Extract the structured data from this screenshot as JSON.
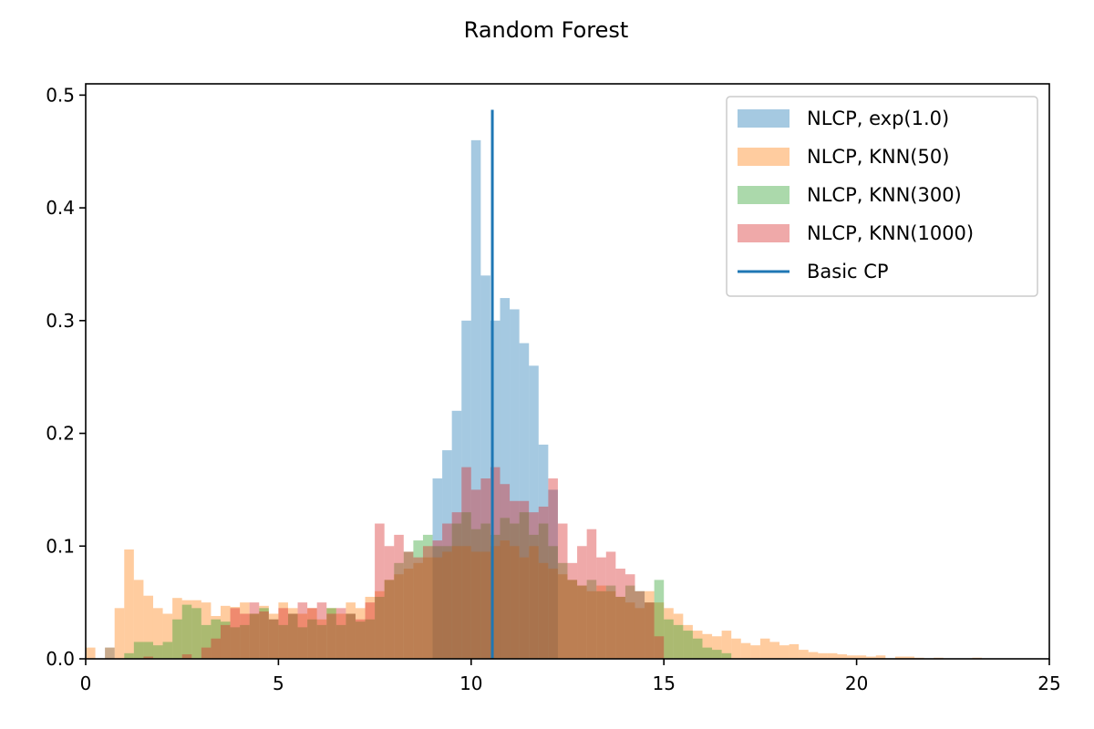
{
  "chart_data": {
    "type": "histogram",
    "title": "Random Forest",
    "xlabel": "",
    "ylabel": "",
    "xlim": [
      0,
      25
    ],
    "ylim": [
      0,
      0.51
    ],
    "xticks": [
      0,
      5,
      10,
      15,
      20,
      25
    ],
    "xtick_labels": [
      "0",
      "5",
      "10",
      "15",
      "20",
      "25"
    ],
    "yticks": [
      0.0,
      0.1,
      0.2,
      0.3,
      0.4,
      0.5
    ],
    "ytick_labels": [
      "0.0",
      "0.1",
      "0.2",
      "0.3",
      "0.4",
      "0.5"
    ],
    "grid": false,
    "legend_position": "top-right",
    "series": [
      {
        "name": "NLCP, exp(1.0)",
        "color": "#1f77b4",
        "alpha": 0.4,
        "bins": [
          [
            0.5,
            0.75,
            0.01
          ],
          [
            9.0,
            9.25,
            0.16
          ],
          [
            9.25,
            9.5,
            0.185
          ],
          [
            9.5,
            9.75,
            0.22
          ],
          [
            9.75,
            10.0,
            0.3
          ],
          [
            10.0,
            10.25,
            0.46
          ],
          [
            10.25,
            10.5,
            0.34
          ],
          [
            10.5,
            10.75,
            0.3
          ],
          [
            10.75,
            11.0,
            0.32
          ],
          [
            11.0,
            11.25,
            0.31
          ],
          [
            11.25,
            11.5,
            0.28
          ],
          [
            11.5,
            11.75,
            0.26
          ],
          [
            11.75,
            12.0,
            0.19
          ],
          [
            12.0,
            12.25,
            0.15
          ]
        ]
      },
      {
        "name": "NLCP, KNN(50)",
        "color": "#ff7f0e",
        "alpha": 0.4,
        "bins": [
          [
            0.0,
            0.25,
            0.01
          ],
          [
            0.5,
            0.75,
            0.01
          ],
          [
            0.75,
            1.0,
            0.045
          ],
          [
            1.0,
            1.25,
            0.097
          ],
          [
            1.25,
            1.5,
            0.07
          ],
          [
            1.5,
            1.75,
            0.056
          ],
          [
            1.75,
            2.0,
            0.045
          ],
          [
            2.0,
            2.25,
            0.04
          ],
          [
            2.25,
            2.5,
            0.054
          ],
          [
            2.5,
            2.75,
            0.052
          ],
          [
            2.75,
            3.0,
            0.052
          ],
          [
            3.0,
            3.25,
            0.05
          ],
          [
            3.25,
            3.5,
            0.038
          ],
          [
            3.5,
            3.75,
            0.047
          ],
          [
            3.75,
            4.0,
            0.046
          ],
          [
            4.0,
            4.25,
            0.05
          ],
          [
            4.25,
            4.5,
            0.04
          ],
          [
            4.5,
            4.75,
            0.047
          ],
          [
            4.75,
            5.0,
            0.04
          ],
          [
            5.0,
            5.25,
            0.05
          ],
          [
            5.25,
            5.5,
            0.045
          ],
          [
            5.5,
            5.75,
            0.04
          ],
          [
            5.75,
            6.0,
            0.045
          ],
          [
            6.0,
            6.25,
            0.035
          ],
          [
            6.25,
            6.5,
            0.045
          ],
          [
            6.5,
            6.75,
            0.04
          ],
          [
            6.75,
            7.0,
            0.05
          ],
          [
            7.0,
            7.25,
            0.045
          ],
          [
            7.25,
            7.5,
            0.055
          ],
          [
            7.5,
            7.75,
            0.06
          ],
          [
            7.75,
            8.0,
            0.07
          ],
          [
            8.0,
            8.25,
            0.075
          ],
          [
            8.25,
            8.5,
            0.08
          ],
          [
            8.5,
            8.75,
            0.085
          ],
          [
            8.75,
            9.0,
            0.09
          ],
          [
            9.0,
            9.25,
            0.09
          ],
          [
            9.25,
            9.5,
            0.095
          ],
          [
            9.5,
            9.75,
            0.1
          ],
          [
            9.75,
            10.0,
            0.1
          ],
          [
            10.0,
            10.25,
            0.095
          ],
          [
            10.25,
            10.5,
            0.095
          ],
          [
            10.5,
            10.75,
            0.1
          ],
          [
            10.75,
            11.0,
            0.105
          ],
          [
            11.0,
            11.25,
            0.1
          ],
          [
            11.25,
            11.5,
            0.09
          ],
          [
            11.5,
            11.75,
            0.1
          ],
          [
            11.75,
            12.0,
            0.085
          ],
          [
            12.0,
            12.25,
            0.08
          ],
          [
            12.25,
            12.5,
            0.075
          ],
          [
            12.5,
            12.75,
            0.07
          ],
          [
            12.75,
            13.0,
            0.065
          ],
          [
            13.0,
            13.25,
            0.06
          ],
          [
            13.25,
            13.5,
            0.065
          ],
          [
            13.5,
            13.75,
            0.06
          ],
          [
            13.75,
            14.0,
            0.055
          ],
          [
            14.0,
            14.25,
            0.05
          ],
          [
            14.25,
            14.5,
            0.045
          ],
          [
            14.5,
            14.75,
            0.06
          ],
          [
            14.75,
            15.0,
            0.05
          ],
          [
            15.0,
            15.25,
            0.045
          ],
          [
            15.25,
            15.5,
            0.04
          ],
          [
            15.5,
            15.75,
            0.03
          ],
          [
            15.75,
            16.0,
            0.025
          ],
          [
            16.0,
            16.25,
            0.022
          ],
          [
            16.25,
            16.5,
            0.02
          ],
          [
            16.5,
            16.75,
            0.025
          ],
          [
            16.75,
            17.0,
            0.018
          ],
          [
            17.0,
            17.25,
            0.014
          ],
          [
            17.25,
            17.5,
            0.012
          ],
          [
            17.5,
            17.75,
            0.018
          ],
          [
            17.75,
            18.0,
            0.015
          ],
          [
            18.0,
            18.25,
            0.012
          ],
          [
            18.25,
            18.5,
            0.013
          ],
          [
            18.5,
            18.75,
            0.008
          ],
          [
            18.75,
            19.0,
            0.006
          ],
          [
            19.0,
            19.25,
            0.005
          ],
          [
            19.25,
            19.5,
            0.005
          ],
          [
            19.5,
            19.75,
            0.004
          ],
          [
            19.75,
            20.0,
            0.003
          ],
          [
            20.0,
            20.25,
            0.003
          ],
          [
            20.25,
            20.5,
            0.002
          ],
          [
            20.5,
            20.75,
            0.003
          ],
          [
            21.0,
            21.25,
            0.002
          ],
          [
            21.25,
            21.5,
            0.002
          ],
          [
            21.5,
            21.75,
            0.001
          ],
          [
            22.0,
            22.25,
            0.001
          ],
          [
            23.0,
            23.25,
            0.001
          ]
        ]
      },
      {
        "name": "NLCP, KNN(300)",
        "color": "#2ca02c",
        "alpha": 0.4,
        "bins": [
          [
            1.0,
            1.25,
            0.005
          ],
          [
            1.25,
            1.5,
            0.015
          ],
          [
            1.5,
            1.75,
            0.015
          ],
          [
            1.75,
            2.0,
            0.012
          ],
          [
            2.0,
            2.25,
            0.015
          ],
          [
            2.25,
            2.5,
            0.035
          ],
          [
            2.5,
            2.75,
            0.048
          ],
          [
            2.75,
            3.0,
            0.045
          ],
          [
            3.0,
            3.25,
            0.03
          ],
          [
            3.25,
            3.5,
            0.035
          ],
          [
            3.5,
            3.75,
            0.033
          ],
          [
            3.75,
            4.0,
            0.028
          ],
          [
            4.0,
            4.25,
            0.03
          ],
          [
            4.25,
            4.5,
            0.04
          ],
          [
            4.5,
            4.75,
            0.045
          ],
          [
            4.75,
            5.0,
            0.035
          ],
          [
            5.0,
            5.25,
            0.03
          ],
          [
            5.25,
            5.5,
            0.04
          ],
          [
            5.5,
            5.75,
            0.028
          ],
          [
            5.75,
            6.0,
            0.035
          ],
          [
            6.0,
            6.25,
            0.03
          ],
          [
            6.25,
            6.5,
            0.045
          ],
          [
            6.5,
            6.75,
            0.03
          ],
          [
            6.75,
            7.0,
            0.04
          ],
          [
            7.0,
            7.25,
            0.033
          ],
          [
            7.25,
            7.5,
            0.035
          ],
          [
            7.5,
            7.75,
            0.055
          ],
          [
            7.75,
            8.0,
            0.07
          ],
          [
            8.0,
            8.25,
            0.085
          ],
          [
            8.25,
            8.5,
            0.095
          ],
          [
            8.5,
            8.75,
            0.105
          ],
          [
            8.75,
            9.0,
            0.11
          ],
          [
            9.0,
            9.25,
            0.1
          ],
          [
            9.25,
            9.5,
            0.1
          ],
          [
            9.5,
            9.75,
            0.12
          ],
          [
            9.75,
            10.0,
            0.13
          ],
          [
            10.0,
            10.25,
            0.115
          ],
          [
            10.25,
            10.5,
            0.12
          ],
          [
            10.5,
            10.75,
            0.11
          ],
          [
            10.75,
            11.0,
            0.125
          ],
          [
            11.0,
            11.25,
            0.12
          ],
          [
            11.25,
            11.5,
            0.13
          ],
          [
            11.5,
            11.75,
            0.11
          ],
          [
            11.75,
            12.0,
            0.12
          ],
          [
            12.0,
            12.25,
            0.1
          ],
          [
            12.25,
            12.5,
            0.085
          ],
          [
            12.5,
            12.75,
            0.07
          ],
          [
            12.75,
            13.0,
            0.065
          ],
          [
            13.0,
            13.25,
            0.07
          ],
          [
            13.25,
            13.5,
            0.06
          ],
          [
            13.5,
            13.75,
            0.065
          ],
          [
            13.75,
            14.0,
            0.055
          ],
          [
            14.0,
            14.25,
            0.065
          ],
          [
            14.25,
            14.5,
            0.06
          ],
          [
            14.5,
            14.75,
            0.05
          ],
          [
            14.75,
            15.0,
            0.07
          ],
          [
            15.0,
            15.25,
            0.035
          ],
          [
            15.25,
            15.5,
            0.03
          ],
          [
            15.5,
            15.75,
            0.025
          ],
          [
            15.75,
            16.0,
            0.018
          ],
          [
            16.0,
            16.25,
            0.01
          ],
          [
            16.25,
            16.5,
            0.008
          ],
          [
            16.5,
            16.75,
            0.005
          ]
        ]
      },
      {
        "name": "NLCP, KNN(1000)",
        "color": "#d62728",
        "alpha": 0.4,
        "bins": [
          [
            1.5,
            1.75,
            0.002
          ],
          [
            2.5,
            2.75,
            0.004
          ],
          [
            3.0,
            3.25,
            0.01
          ],
          [
            3.25,
            3.5,
            0.018
          ],
          [
            3.5,
            3.75,
            0.03
          ],
          [
            3.75,
            4.0,
            0.045
          ],
          [
            4.0,
            4.25,
            0.04
          ],
          [
            4.25,
            4.5,
            0.05
          ],
          [
            4.5,
            4.75,
            0.042
          ],
          [
            4.75,
            5.0,
            0.035
          ],
          [
            5.0,
            5.25,
            0.045
          ],
          [
            5.25,
            5.5,
            0.04
          ],
          [
            5.5,
            5.75,
            0.05
          ],
          [
            5.75,
            6.0,
            0.045
          ],
          [
            6.0,
            6.25,
            0.05
          ],
          [
            6.25,
            6.5,
            0.04
          ],
          [
            6.5,
            6.75,
            0.045
          ],
          [
            6.75,
            7.0,
            0.04
          ],
          [
            7.0,
            7.25,
            0.035
          ],
          [
            7.25,
            7.5,
            0.05
          ],
          [
            7.5,
            7.75,
            0.12
          ],
          [
            7.75,
            8.0,
            0.1
          ],
          [
            8.0,
            8.25,
            0.11
          ],
          [
            8.25,
            8.5,
            0.095
          ],
          [
            8.5,
            8.75,
            0.09
          ],
          [
            8.75,
            9.0,
            0.1
          ],
          [
            9.0,
            9.25,
            0.105
          ],
          [
            9.25,
            9.5,
            0.12
          ],
          [
            9.5,
            9.75,
            0.13
          ],
          [
            9.75,
            10.0,
            0.17
          ],
          [
            10.0,
            10.25,
            0.15
          ],
          [
            10.25,
            10.5,
            0.16
          ],
          [
            10.5,
            10.75,
            0.17
          ],
          [
            10.75,
            11.0,
            0.155
          ],
          [
            11.0,
            11.25,
            0.14
          ],
          [
            11.25,
            11.5,
            0.14
          ],
          [
            11.5,
            11.75,
            0.13
          ],
          [
            11.75,
            12.0,
            0.135
          ],
          [
            12.0,
            12.25,
            0.16
          ],
          [
            12.25,
            12.5,
            0.12
          ],
          [
            12.5,
            12.75,
            0.085
          ],
          [
            12.75,
            13.0,
            0.1
          ],
          [
            13.0,
            13.25,
            0.115
          ],
          [
            13.25,
            13.5,
            0.09
          ],
          [
            13.5,
            13.75,
            0.095
          ],
          [
            13.75,
            14.0,
            0.08
          ],
          [
            14.0,
            14.25,
            0.075
          ],
          [
            14.25,
            14.5,
            0.06
          ],
          [
            14.5,
            14.75,
            0.05
          ],
          [
            14.75,
            15.0,
            0.02
          ]
        ]
      },
      {
        "name": "Basic CP",
        "type": "vline",
        "color": "#1f77b4",
        "x": 10.55,
        "y_range": [
          0,
          0.487
        ]
      }
    ]
  }
}
